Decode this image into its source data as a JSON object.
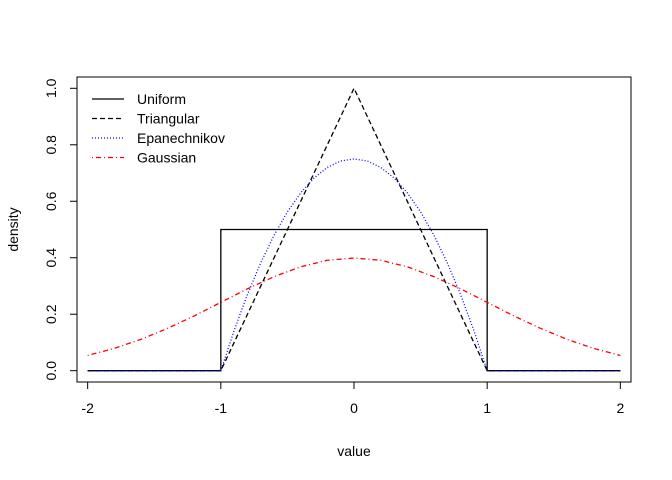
{
  "chart_data": {
    "type": "line",
    "title": "",
    "xlabel": "value",
    "ylabel": "density",
    "xlim": [
      -2.08,
      2.08
    ],
    "ylim": [
      -0.04,
      1.04
    ],
    "xticks": [
      -2,
      -1,
      0,
      1,
      2
    ],
    "yticks": [
      0.0,
      0.2,
      0.4,
      0.6,
      0.8,
      1.0
    ],
    "xtick_labels": [
      "-2",
      "-1",
      "0",
      "1",
      "2"
    ],
    "ytick_labels": [
      "0.0",
      "0.2",
      "0.4",
      "0.6",
      "0.8",
      "1.0"
    ],
    "grid": false,
    "legend_position": "top-left",
    "series": [
      {
        "name": "Uniform",
        "color": "#000000",
        "dash": "solid",
        "x": [
          -2,
          -1,
          -1,
          1,
          1,
          2
        ],
        "y": [
          0,
          0,
          0.5,
          0.5,
          0,
          0
        ]
      },
      {
        "name": "Triangular",
        "color": "#000000",
        "dash": "dashed",
        "x": [
          -2,
          -1,
          0,
          1,
          2
        ],
        "y": [
          0,
          0,
          1.0,
          0,
          0
        ]
      },
      {
        "name": "Epanechnikov",
        "color": "#0000ff",
        "dash": "dotted",
        "x": [
          -2,
          -1,
          -0.9,
          -0.8,
          -0.7,
          -0.6,
          -0.5,
          -0.4,
          -0.3,
          -0.2,
          -0.1,
          0,
          0.1,
          0.2,
          0.3,
          0.4,
          0.5,
          0.6,
          0.7,
          0.8,
          0.9,
          1,
          2
        ],
        "y": [
          0,
          0,
          0.1425,
          0.27,
          0.3825,
          0.48,
          0.5625,
          0.63,
          0.6825,
          0.72,
          0.7425,
          0.75,
          0.7425,
          0.72,
          0.6825,
          0.63,
          0.5625,
          0.48,
          0.3825,
          0.27,
          0.1425,
          0,
          0
        ]
      },
      {
        "name": "Gaussian",
        "color": "#ff0000",
        "dash": "dotdash",
        "x": [
          -2,
          -1.8,
          -1.6,
          -1.4,
          -1.2,
          -1,
          -0.8,
          -0.6,
          -0.4,
          -0.2,
          0,
          0.2,
          0.4,
          0.6,
          0.8,
          1,
          1.2,
          1.4,
          1.6,
          1.8,
          2
        ],
        "y": [
          0.054,
          0.079,
          0.111,
          0.15,
          0.194,
          0.242,
          0.29,
          0.333,
          0.368,
          0.391,
          0.399,
          0.391,
          0.368,
          0.333,
          0.29,
          0.242,
          0.194,
          0.15,
          0.111,
          0.079,
          0.054
        ]
      }
    ]
  }
}
